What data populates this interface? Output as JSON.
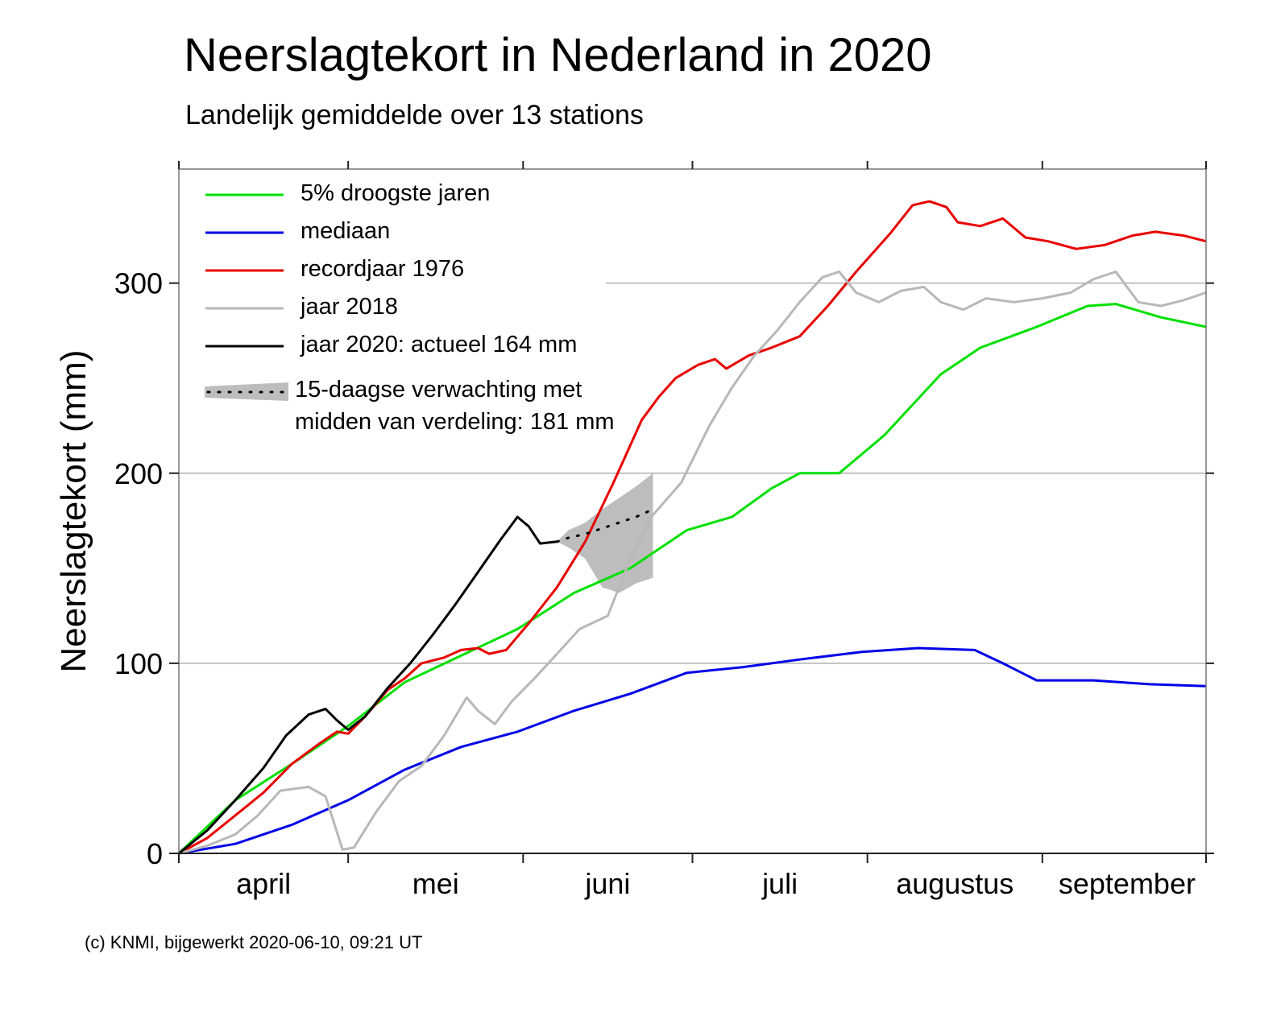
{
  "title": "Neerslagtekort in Nederland in 2020",
  "subtitle": "Landelijk gemiddelde over 13 stations",
  "credit": "(c) KNMI, bijgewerkt 2020-06-10, 09:21 UT",
  "chart_data": {
    "type": "line",
    "title": "Neerslagtekort in Nederland in 2020",
    "subtitle": "Landelijk gemiddelde over 13 stations",
    "ylabel": "Neerslagtekort (mm)",
    "xlabel": "",
    "ylim": [
      0,
      360
    ],
    "y_ticks": [
      "0",
      "100",
      "200",
      "300"
    ],
    "x_ticks": [
      "april",
      "mei",
      "juni",
      "juli",
      "augustus",
      "september"
    ],
    "x_range": [
      "2020-04-01",
      "2020-09-30"
    ],
    "grid": true,
    "legend_position": "top-left",
    "series": [
      {
        "name": "5% droogste jaren",
        "color": "#00e000",
        "points": [
          [
            "04-01",
            0
          ],
          [
            "04-11",
            28
          ],
          [
            "04-21",
            47
          ],
          [
            "05-01",
            67
          ],
          [
            "05-11",
            90
          ],
          [
            "05-21",
            104
          ],
          [
            "05-31",
            118
          ],
          [
            "06-10",
            137
          ],
          [
            "06-20",
            150
          ],
          [
            "06-30",
            170
          ],
          [
            "07-08",
            177
          ],
          [
            "07-15",
            192
          ],
          [
            "07-20",
            200
          ],
          [
            "07-27",
            200
          ],
          [
            "08-04",
            220
          ],
          [
            "08-14",
            252
          ],
          [
            "08-21",
            266
          ],
          [
            "08-31",
            277
          ],
          [
            "09-09",
            288
          ],
          [
            "09-14",
            289
          ],
          [
            "09-22",
            282
          ],
          [
            "09-30",
            277
          ]
        ]
      },
      {
        "name": "mediaan",
        "color": "#0000e8",
        "points": [
          [
            "04-01",
            0
          ],
          [
            "04-11",
            5
          ],
          [
            "04-21",
            15
          ],
          [
            "05-01",
            28
          ],
          [
            "05-11",
            44
          ],
          [
            "05-21",
            56
          ],
          [
            "05-31",
            64
          ],
          [
            "06-10",
            75
          ],
          [
            "06-20",
            84
          ],
          [
            "06-30",
            95
          ],
          [
            "07-10",
            98
          ],
          [
            "07-20",
            102
          ],
          [
            "07-31",
            106
          ],
          [
            "08-10",
            108
          ],
          [
            "08-20",
            107
          ],
          [
            "08-25",
            100
          ],
          [
            "08-31",
            91
          ],
          [
            "09-10",
            91
          ],
          [
            "09-20",
            89
          ],
          [
            "09-30",
            88
          ]
        ]
      },
      {
        "name": "recordjaar 1976",
        "color": "#e80000",
        "points": [
          [
            "04-01",
            0
          ],
          [
            "04-06",
            8
          ],
          [
            "04-11",
            20
          ],
          [
            "04-16",
            32
          ],
          [
            "04-21",
            47
          ],
          [
            "04-26",
            58
          ],
          [
            "04-29",
            64
          ],
          [
            "05-01",
            63
          ],
          [
            "05-04",
            72
          ],
          [
            "05-08",
            86
          ],
          [
            "05-11",
            92
          ],
          [
            "05-14",
            100
          ],
          [
            "05-18",
            103
          ],
          [
            "05-21",
            107
          ],
          [
            "05-24",
            108
          ],
          [
            "05-26",
            105
          ],
          [
            "05-29",
            107
          ],
          [
            "06-02",
            121
          ],
          [
            "06-07",
            140
          ],
          [
            "06-12",
            164
          ],
          [
            "06-17",
            195
          ],
          [
            "06-22",
            228
          ],
          [
            "06-25",
            240
          ],
          [
            "06-28",
            250
          ],
          [
            "07-02",
            257
          ],
          [
            "07-05",
            260
          ],
          [
            "07-07",
            255
          ],
          [
            "07-11",
            262
          ],
          [
            "07-15",
            266
          ],
          [
            "07-20",
            272
          ],
          [
            "07-25",
            288
          ],
          [
            "07-30",
            306
          ],
          [
            "08-05",
            326
          ],
          [
            "08-09",
            341
          ],
          [
            "08-12",
            343
          ],
          [
            "08-15",
            340
          ],
          [
            "08-17",
            332
          ],
          [
            "08-21",
            330
          ],
          [
            "08-25",
            334
          ],
          [
            "08-29",
            324
          ],
          [
            "09-02",
            322
          ],
          [
            "09-07",
            318
          ],
          [
            "09-12",
            320
          ],
          [
            "09-17",
            325
          ],
          [
            "09-21",
            327
          ],
          [
            "09-26",
            325
          ],
          [
            "09-30",
            322
          ]
        ]
      },
      {
        "name": "jaar 2018",
        "color": "#b8b8b8",
        "points": [
          [
            "04-01",
            0
          ],
          [
            "04-06",
            4
          ],
          [
            "04-11",
            10
          ],
          [
            "04-15",
            20
          ],
          [
            "04-19",
            33
          ],
          [
            "04-24",
            35
          ],
          [
            "04-27",
            30
          ],
          [
            "04-30",
            2
          ],
          [
            "05-02",
            3
          ],
          [
            "05-06",
            22
          ],
          [
            "05-10",
            38
          ],
          [
            "05-14",
            46
          ],
          [
            "05-18",
            62
          ],
          [
            "05-22",
            82
          ],
          [
            "05-24",
            75
          ],
          [
            "05-27",
            68
          ],
          [
            "05-30",
            80
          ],
          [
            "06-03",
            92
          ],
          [
            "06-07",
            105
          ],
          [
            "06-11",
            118
          ],
          [
            "06-16",
            125
          ],
          [
            "06-20",
            155
          ],
          [
            "06-24",
            178
          ],
          [
            "06-29",
            195
          ],
          [
            "07-04",
            225
          ],
          [
            "07-08",
            245
          ],
          [
            "07-12",
            262
          ],
          [
            "07-16",
            275
          ],
          [
            "07-20",
            290
          ],
          [
            "07-24",
            303
          ],
          [
            "07-27",
            306
          ],
          [
            "07-30",
            295
          ],
          [
            "08-03",
            290
          ],
          [
            "08-07",
            296
          ],
          [
            "08-11",
            298
          ],
          [
            "08-14",
            290
          ],
          [
            "08-18",
            286
          ],
          [
            "08-22",
            292
          ],
          [
            "08-27",
            290
          ],
          [
            "09-01",
            292
          ],
          [
            "09-06",
            295
          ],
          [
            "09-10",
            302
          ],
          [
            "09-14",
            306
          ],
          [
            "09-18",
            290
          ],
          [
            "09-22",
            288
          ],
          [
            "09-26",
            291
          ],
          [
            "09-30",
            295
          ]
        ]
      },
      {
        "name": "jaar 2020: actueel 164 mm",
        "color": "#000000",
        "points": [
          [
            "04-01",
            0
          ],
          [
            "04-06",
            12
          ],
          [
            "04-11",
            28
          ],
          [
            "04-16",
            45
          ],
          [
            "04-20",
            62
          ],
          [
            "04-24",
            73
          ],
          [
            "04-27",
            76
          ],
          [
            "04-29",
            70
          ],
          [
            "05-01",
            65
          ],
          [
            "05-04",
            72
          ],
          [
            "05-08",
            87
          ],
          [
            "05-12",
            100
          ],
          [
            "05-16",
            115
          ],
          [
            "05-20",
            131
          ],
          [
            "05-24",
            148
          ],
          [
            "05-28",
            165
          ],
          [
            "05-31",
            177
          ],
          [
            "06-02",
            172
          ],
          [
            "06-04",
            163
          ],
          [
            "06-07",
            164
          ]
        ]
      }
    ],
    "forecast": {
      "name": "15-daagse verwachting met midden van verdeling: 181 mm",
      "color": "#000000",
      "band_color": "#bdbdbd",
      "median": [
        [
          "06-07",
          164
        ],
        [
          "06-09",
          166
        ],
        [
          "06-12",
          168
        ],
        [
          "06-15",
          171
        ],
        [
          "06-18",
          174
        ],
        [
          "06-21",
          177
        ],
        [
          "06-24",
          181
        ]
      ],
      "lower": [
        [
          "06-07",
          164
        ],
        [
          "06-09",
          161
        ],
        [
          "06-12",
          155
        ],
        [
          "06-15",
          140
        ],
        [
          "06-18",
          137
        ],
        [
          "06-21",
          142
        ],
        [
          "06-24",
          145
        ]
      ],
      "upper": [
        [
          "06-07",
          164
        ],
        [
          "06-09",
          170
        ],
        [
          "06-12",
          174
        ],
        [
          "06-15",
          181
        ],
        [
          "06-18",
          187
        ],
        [
          "06-21",
          193
        ],
        [
          "06-24",
          200
        ]
      ]
    }
  }
}
